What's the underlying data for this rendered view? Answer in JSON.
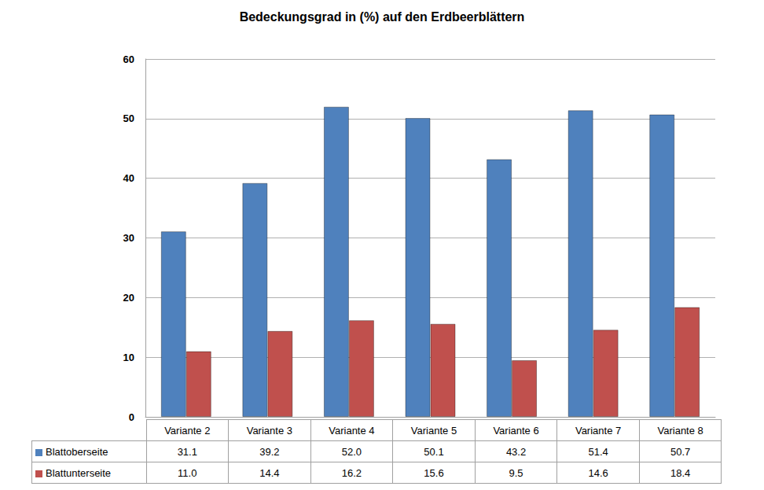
{
  "chart_data": {
    "type": "bar",
    "title": "Bedeckungsgrad in (%) auf den Erdbeerblättern",
    "categories": [
      "Variante 2",
      "Variante 3",
      "Variante 4",
      "Variante 5",
      "Variante 6",
      "Variante 7",
      "Variante 8"
    ],
    "series": [
      {
        "name": "Blattoberseite",
        "color": "#4f81bd",
        "values": [
          31.1,
          39.2,
          52.0,
          50.1,
          43.2,
          51.4,
          50.7
        ],
        "value_labels": [
          "31.1",
          "39.2",
          "52.0",
          "50.1",
          "43.2",
          "51.4",
          "50.7"
        ]
      },
      {
        "name": "Blattunterseite",
        "color": "#c0504d",
        "values": [
          11.0,
          14.4,
          16.2,
          15.6,
          9.5,
          14.6,
          18.4
        ],
        "value_labels": [
          "11.0",
          "14.4",
          "16.2",
          "15.6",
          "9.5",
          "14.6",
          "18.4"
        ]
      }
    ],
    "ylim": [
      0,
      60
    ],
    "yticks": [
      0,
      10,
      20,
      30,
      40,
      50,
      60
    ],
    "grid": true
  }
}
